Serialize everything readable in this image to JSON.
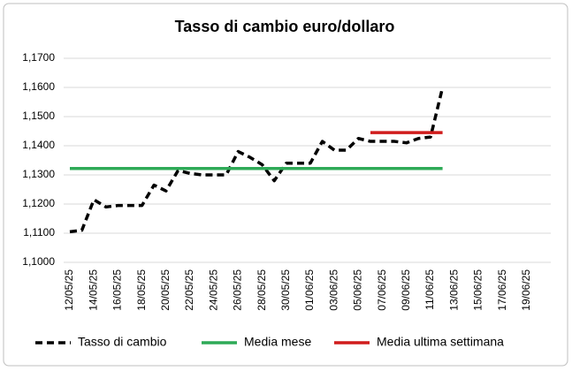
{
  "chart_data": {
    "type": "line",
    "title": "Tasso di cambio euro/dollaro",
    "categories": [
      "12/05/25",
      null,
      "14/05/25",
      null,
      "16/05/25",
      null,
      "18/05/25",
      null,
      "20/05/25",
      null,
      "22/05/25",
      null,
      "24/05/25",
      null,
      "26/05/25",
      null,
      "28/05/25",
      null,
      "30/05/25",
      null,
      "01/06/25",
      null,
      "03/06/25",
      null,
      "05/06/25",
      null,
      "07/06/25",
      null,
      "09/06/25",
      null,
      "11/06/25",
      null,
      "13/06/25",
      null,
      "15/06/25",
      null,
      "17/06/25",
      null,
      "19/06/25"
    ],
    "series": [
      {
        "name": "Tasso di cambio",
        "color": "#000000",
        "dashed": true,
        "values": [
          1.1105,
          1.111,
          1.1215,
          1.119,
          1.1195,
          1.1195,
          1.1195,
          1.1265,
          1.1245,
          1.1315,
          1.1305,
          1.13,
          1.13,
          1.13,
          1.138,
          1.136,
          1.1335,
          1.128,
          1.134,
          1.134,
          1.134,
          1.1415,
          1.1385,
          1.1385,
          1.1425,
          1.1415,
          1.1415,
          1.1415,
          1.141,
          1.1425,
          1.143,
          1.16,
          null,
          null,
          null,
          null,
          null,
          null,
          null
        ]
      },
      {
        "name": "Media mese",
        "color": "#2eaa57",
        "dashed": false,
        "values": [
          1.1322,
          1.1322,
          1.1322,
          1.1322,
          1.1322,
          1.1322,
          1.1322,
          1.1322,
          1.1322,
          1.1322,
          1.1322,
          1.1322,
          1.1322,
          1.1322,
          1.1322,
          1.1322,
          1.1322,
          1.1322,
          1.1322,
          1.1322,
          1.1322,
          1.1322,
          1.1322,
          1.1322,
          1.1322,
          1.1322,
          1.1322,
          1.1322,
          1.1322,
          1.1322,
          1.1322,
          1.1322,
          null,
          null,
          null,
          null,
          null,
          null,
          null
        ]
      },
      {
        "name": "Media ultima settimana",
        "color": "#d01c1c",
        "dashed": false,
        "values": [
          null,
          null,
          null,
          null,
          null,
          null,
          null,
          null,
          null,
          null,
          null,
          null,
          null,
          null,
          null,
          null,
          null,
          null,
          null,
          null,
          null,
          null,
          null,
          null,
          null,
          1.1445,
          1.1445,
          1.1445,
          1.1445,
          1.1445,
          1.1445,
          1.1445,
          null,
          null,
          null,
          null,
          null,
          null,
          null
        ]
      }
    ],
    "ylim": [
      1.1,
      1.17
    ],
    "yticks": [
      {
        "value": 1.1,
        "label": "1,1000"
      },
      {
        "value": 1.11,
        "label": "1,1100"
      },
      {
        "value": 1.12,
        "label": "1,1200"
      },
      {
        "value": 1.13,
        "label": "1,1300"
      },
      {
        "value": 1.14,
        "label": "1,1400"
      },
      {
        "value": 1.15,
        "label": "1,1500"
      },
      {
        "value": 1.16,
        "label": "1,1600"
      },
      {
        "value": 1.17,
        "label": "1,1700"
      }
    ],
    "grid": true,
    "legend": "bottom"
  }
}
